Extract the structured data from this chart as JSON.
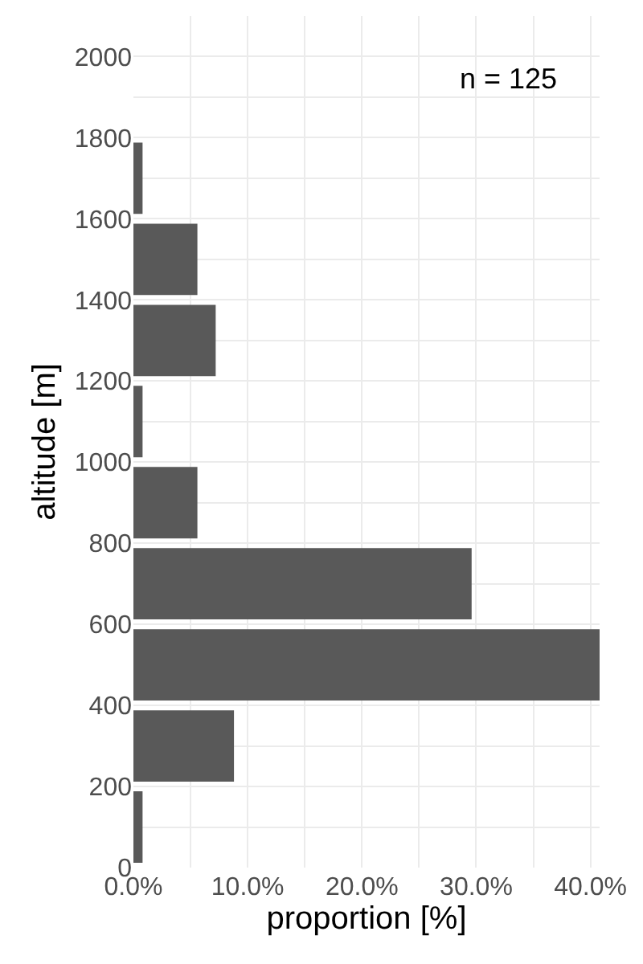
{
  "chart_data": {
    "type": "histogram",
    "orientation": "horizontal",
    "bins": [
      0,
      200,
      400,
      600,
      800,
      1000,
      1200,
      1400,
      1600,
      1800
    ],
    "values": [
      0.8,
      8.8,
      40.8,
      29.6,
      5.6,
      0.8,
      7.2,
      5.6,
      0.8
    ],
    "color": "#595959",
    "xlabel": "proportion [%]",
    "ylabel": "altitude [m]",
    "xlim": [
      0,
      40.8
    ],
    "xticks": [
      {
        "value": 0,
        "label": "0.0%"
      },
      {
        "value": 10,
        "label": "10.0%"
      },
      {
        "value": 20,
        "label": "20.0%"
      },
      {
        "value": 30,
        "label": "30.0%"
      },
      {
        "value": 40,
        "label": "40.0%"
      }
    ],
    "ylim": [
      0,
      2100
    ],
    "yticks": [
      0,
      200,
      400,
      600,
      800,
      1000,
      1200,
      1400,
      1600,
      1800,
      2000
    ],
    "grid": true,
    "annotations": [
      "n = 125"
    ]
  }
}
